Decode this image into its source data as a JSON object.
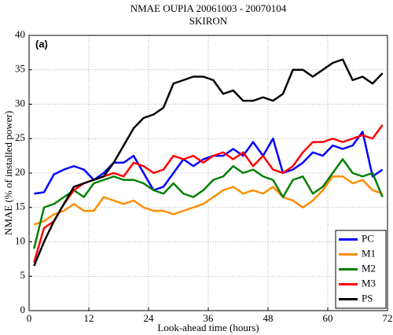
{
  "chart_data": {
    "type": "line",
    "title": "NMAE OUPIA 20061003 - 20070104",
    "subtitle": "SKIRON",
    "annotation": "(a)",
    "x_label": "Look-ahead time (hours)",
    "y_label": "NMAE (% of installed power)",
    "x": [
      1,
      3,
      5,
      7,
      9,
      11,
      13,
      15,
      17,
      19,
      21,
      23,
      25,
      27,
      29,
      31,
      33,
      35,
      37,
      39,
      41,
      43,
      45,
      47,
      49,
      51,
      53,
      55,
      57,
      59,
      61,
      63,
      65,
      67,
      69,
      71
    ],
    "series": [
      {
        "name": "PC",
        "color": "#0000ff",
        "values": [
          17,
          17.2,
          19.8,
          20.5,
          21,
          20.5,
          19,
          20,
          21.5,
          21.5,
          22.5,
          20,
          17.5,
          18,
          20,
          22,
          21,
          22,
          22.5,
          22.5,
          23.5,
          22.5,
          24.5,
          22.5,
          25,
          20,
          20.5,
          21.5,
          23,
          22.5,
          24,
          23.5,
          24,
          26,
          19.5,
          20.5
        ]
      },
      {
        "name": "M1",
        "color": "#ff8c00",
        "values": [
          12.5,
          13,
          14,
          14.5,
          15.5,
          14.5,
          14.5,
          16.5,
          16,
          15.5,
          16,
          15,
          14.5,
          14.5,
          14,
          14.5,
          15,
          15.5,
          16.5,
          17.5,
          18,
          17,
          17.5,
          17,
          18,
          16.5,
          16,
          15,
          16,
          17.5,
          19.5,
          19.5,
          18.5,
          19,
          17.5,
          17
        ]
      },
      {
        "name": "M2",
        "color": "#008000",
        "values": [
          9,
          15,
          15.5,
          16.5,
          17.5,
          16.5,
          18.5,
          19,
          19.5,
          19,
          19,
          18.5,
          17.5,
          17,
          18.5,
          17,
          16.5,
          17.5,
          19,
          19.5,
          21,
          20,
          20.5,
          19.5,
          19,
          16.5,
          19,
          19.5,
          17,
          18,
          20,
          22,
          20,
          19.5,
          20,
          16.5
        ]
      },
      {
        "name": "M3",
        "color": "#ff0000",
        "values": [
          7,
          12,
          13,
          15.5,
          17.5,
          18.5,
          19,
          19.5,
          20,
          19.5,
          21.5,
          21,
          20,
          20.5,
          22.5,
          22,
          22.5,
          21.5,
          22.5,
          23,
          22,
          23,
          21,
          22.5,
          20.5,
          20,
          21,
          23,
          24.5,
          24.5,
          25,
          24.5,
          25,
          25.5,
          25,
          27
        ]
      },
      {
        "name": "PS",
        "color": "#000000",
        "values": [
          6.5,
          10,
          13,
          15.5,
          18,
          18.5,
          19,
          19.5,
          21.5,
          24,
          26.5,
          28,
          28.5,
          29.5,
          33,
          33.5,
          34,
          34,
          33.5,
          31.5,
          32,
          30.5,
          30.5,
          31,
          30.5,
          31.5,
          35,
          35,
          34,
          35,
          36,
          36.5,
          33.5,
          34,
          33,
          34.5
        ]
      }
    ],
    "xlim": [
      0,
      72
    ],
    "xticks": [
      0,
      12,
      24,
      36,
      48,
      60,
      72
    ],
    "ylim": [
      0,
      40
    ],
    "yticks": [
      0,
      5,
      10,
      15,
      20,
      25,
      30,
      35,
      40
    ],
    "grid": true,
    "legend": "lower right"
  }
}
